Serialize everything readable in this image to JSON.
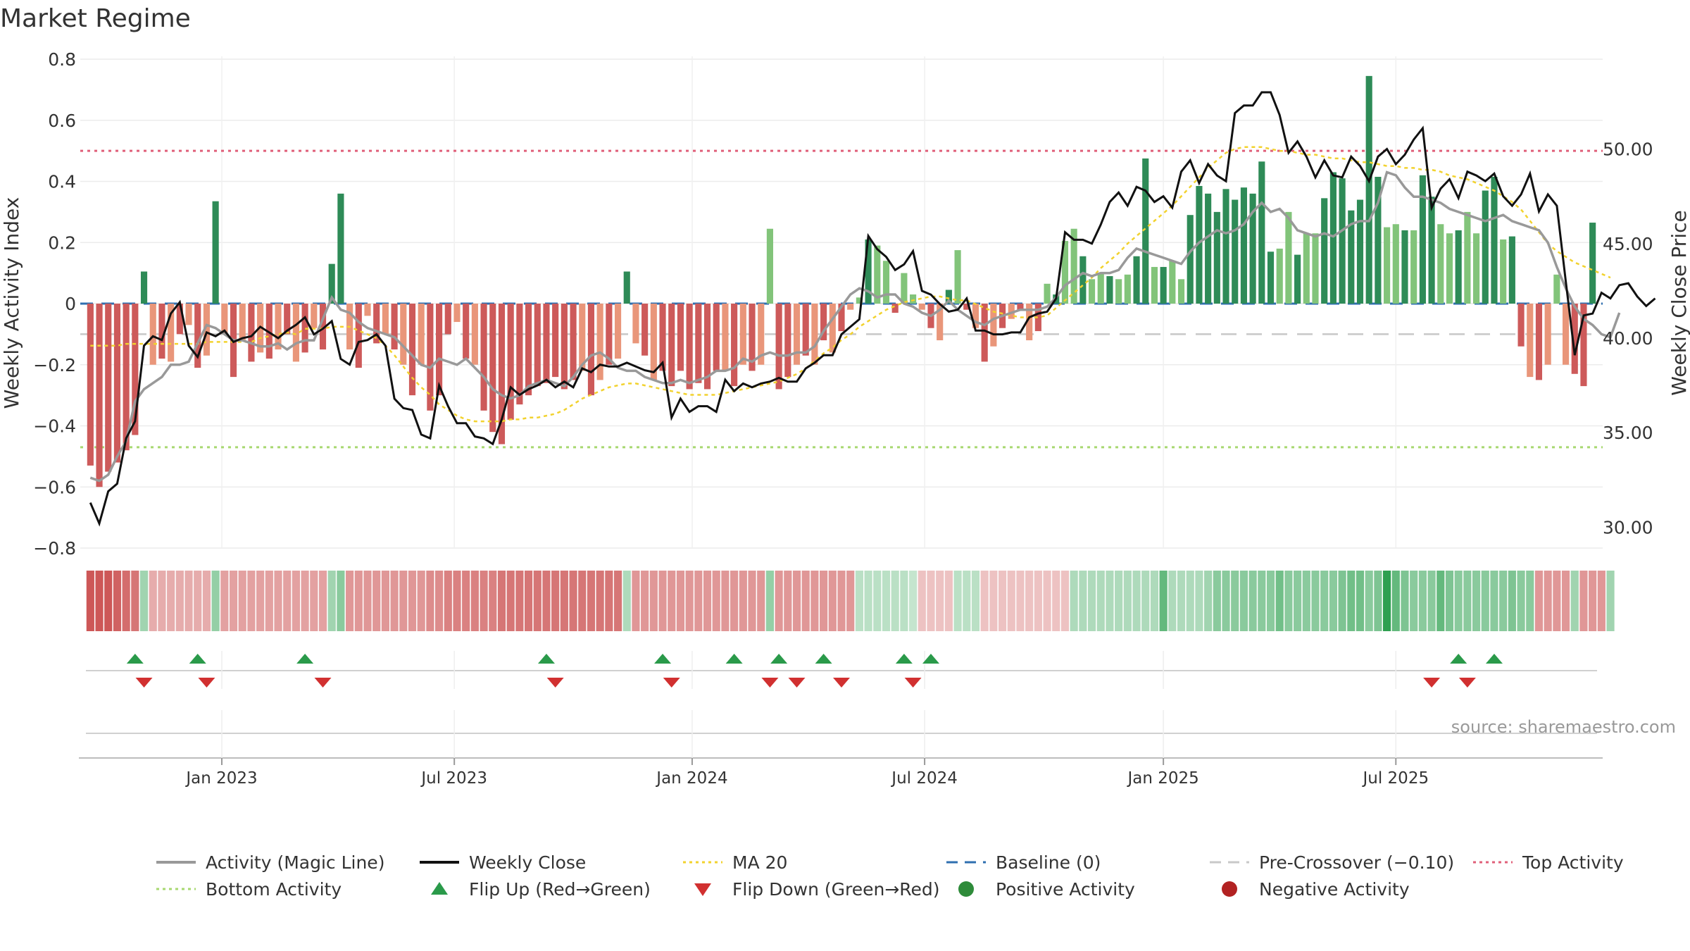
{
  "chart_data": {
    "type": "bar",
    "title": "Market Regime",
    "ylabel_left": "Weekly Activity Index",
    "ylabel_right": "Weekly Close Price",
    "source": "source: sharemaestro.com",
    "ylim_left": [
      -0.8,
      0.8
    ],
    "ylim_right": [
      28.9,
      54.75
    ],
    "left_ticks": [
      "0.8",
      "0.6",
      "0.4",
      "0.2",
      "0",
      "−0.2",
      "−0.4",
      "−0.6",
      "−0.8"
    ],
    "left_tick_values": [
      0.8,
      0.6,
      0.4,
      0.2,
      0,
      -0.2,
      -0.4,
      -0.6,
      -0.8
    ],
    "right_ticks": [
      "30.00",
      "35.00",
      "40.00",
      "45.00",
      "50.00"
    ],
    "right_tick_values": [
      30,
      35,
      40,
      45,
      50
    ],
    "x_tick_labels": [
      "Jan 2023",
      "Jul 2023",
      "Jan 2024",
      "Jul 2024",
      "Jan 2025",
      "Jul 2025"
    ],
    "x_tick_weeks": [
      14.7,
      40.7,
      67.3,
      93.3,
      120.0,
      146.0
    ],
    "reference_lines": {
      "top_activity": 0.5,
      "bottom_activity": -0.47,
      "baseline": 0,
      "pre_crossover": -0.1
    },
    "grid": true,
    "legend_position": "bottom",
    "legend": [
      {
        "label": "Activity (Magic Line)",
        "kind": "line",
        "color": "#999999"
      },
      {
        "label": "Weekly Close",
        "kind": "line",
        "color": "#111111"
      },
      {
        "label": "MA 20",
        "kind": "dotted",
        "color": "#f2d22e"
      },
      {
        "label": "Baseline (0)",
        "kind": "dashed",
        "color": "#2f6fb0"
      },
      {
        "label": "Pre-Crossover (−0.10)",
        "kind": "dashed",
        "color": "#c8c8c8"
      },
      {
        "label": "Top Activity",
        "kind": "dotted",
        "color": "#e0607a"
      },
      {
        "label": "Bottom Activity",
        "kind": "dotted",
        "color": "#a8d870"
      },
      {
        "label": "Flip Up (Red→Green)",
        "kind": "tri-up",
        "color": "#2a9a4a"
      },
      {
        "label": "Flip Down (Green→Red)",
        "kind": "tri-down",
        "color": "#d13030"
      },
      {
        "label": "Positive Activity",
        "kind": "dot",
        "color": "#2e8b3a"
      },
      {
        "label": "Negative Activity",
        "kind": "dot",
        "color": "#b22222"
      }
    ],
    "colors": {
      "strong_pos": "#2e8b57",
      "weak_pos": "#82c47a",
      "strong_neg": "#cd5a5a",
      "weak_neg": "#e9967a",
      "close": "#111111",
      "magic": "#999999",
      "ma20": "#f2d22e",
      "top": "#e0607a",
      "bottom": "#a8d870",
      "baseline": "#2f6fb0",
      "precross": "#c8c8c8"
    },
    "activity": [
      -0.53,
      -0.6,
      -0.55,
      -0.52,
      -0.48,
      -0.43,
      0.105,
      -0.2,
      -0.18,
      -0.19,
      -0.1,
      -0.07,
      -0.21,
      -0.17,
      0.335,
      -0.1,
      -0.24,
      -0.12,
      -0.19,
      -0.16,
      -0.18,
      -0.15,
      -0.1,
      -0.19,
      -0.16,
      -0.08,
      -0.15,
      0.13,
      0.36,
      -0.15,
      -0.21,
      -0.04,
      -0.13,
      -0.1,
      -0.15,
      -0.2,
      -0.3,
      -0.2,
      -0.35,
      -0.3,
      -0.1,
      -0.06,
      -0.18,
      -0.2,
      -0.35,
      -0.42,
      -0.46,
      -0.38,
      -0.33,
      -0.3,
      -0.27,
      -0.26,
      -0.24,
      -0.28,
      -0.25,
      -0.22,
      -0.3,
      -0.25,
      -0.2,
      -0.18,
      0.105,
      -0.13,
      -0.17,
      -0.25,
      -0.22,
      -0.27,
      -0.22,
      -0.28,
      -0.26,
      -0.28,
      -0.22,
      -0.22,
      -0.27,
      -0.2,
      -0.22,
      -0.2,
      0.245,
      -0.28,
      -0.24,
      -0.2,
      -0.17,
      -0.2,
      -0.12,
      -0.16,
      -0.09,
      -0.02,
      0.02,
      0.21,
      0.19,
      0.14,
      -0.03,
      0.1,
      0.03,
      -0.02,
      -0.08,
      -0.12,
      0.045,
      0.175,
      -0.02,
      -0.08,
      -0.19,
      -0.14,
      -0.08,
      -0.05,
      -0.02,
      -0.12,
      -0.09,
      0.065,
      0.03,
      0.205,
      0.245,
      0.155,
      0.08,
      0.1,
      0.09,
      0.08,
      0.095,
      0.155,
      0.475,
      0.12,
      0.12,
      0.14,
      0.08,
      0.29,
      0.385,
      0.36,
      0.3,
      0.375,
      0.34,
      0.38,
      0.36,
      0.465,
      0.17,
      0.18,
      0.3,
      0.16,
      0.23,
      0.23,
      0.345,
      0.43,
      0.41,
      0.305,
      0.34,
      0.745,
      0.415,
      0.25,
      0.26,
      0.24,
      0.24,
      0.42,
      0.35,
      0.26,
      0.23,
      0.24,
      0.3,
      0.23,
      0.37,
      0.415,
      0.21,
      0.22,
      -0.14,
      -0.24,
      -0.25,
      -0.2,
      0.095,
      -0.2,
      -0.23,
      -0.27,
      0.265
    ],
    "magic_line": [
      -0.57,
      -0.58,
      -0.56,
      -0.5,
      -0.45,
      -0.32,
      -0.28,
      -0.26,
      -0.24,
      -0.2,
      -0.2,
      -0.19,
      -0.13,
      -0.07,
      -0.08,
      -0.1,
      -0.12,
      -0.12,
      -0.13,
      -0.14,
      -0.14,
      -0.13,
      -0.15,
      -0.13,
      -0.12,
      -0.12,
      -0.05,
      0.02,
      -0.02,
      -0.03,
      -0.06,
      -0.08,
      -0.09,
      -0.1,
      -0.11,
      -0.14,
      -0.17,
      -0.2,
      -0.21,
      -0.18,
      -0.19,
      -0.2,
      -0.18,
      -0.21,
      -0.24,
      -0.28,
      -0.3,
      -0.31,
      -0.3,
      -0.27,
      -0.26,
      -0.25,
      -0.26,
      -0.27,
      -0.24,
      -0.2,
      -0.17,
      -0.16,
      -0.18,
      -0.21,
      -0.22,
      -0.22,
      -0.24,
      -0.25,
      -0.26,
      -0.26,
      -0.25,
      -0.26,
      -0.25,
      -0.24,
      -0.22,
      -0.22,
      -0.21,
      -0.18,
      -0.19,
      -0.17,
      -0.16,
      -0.17,
      -0.17,
      -0.16,
      -0.16,
      -0.14,
      -0.09,
      -0.05,
      -0.01,
      0.03,
      0.05,
      0.04,
      0.02,
      0.03,
      0.03,
      0.0,
      -0.01,
      -0.03,
      -0.04,
      -0.02,
      0.01,
      -0.02,
      -0.04,
      -0.06,
      -0.07,
      -0.05,
      -0.04,
      -0.03,
      -0.02,
      -0.02,
      -0.02,
      -0.01,
      0.02,
      0.06,
      0.08,
      0.1,
      0.09,
      0.1,
      0.1,
      0.11,
      0.15,
      0.18,
      0.17,
      0.16,
      0.15,
      0.14,
      0.13,
      0.17,
      0.2,
      0.22,
      0.24,
      0.23,
      0.24,
      0.26,
      0.3,
      0.33,
      0.3,
      0.31,
      0.28,
      0.24,
      0.23,
      0.22,
      0.23,
      0.22,
      0.24,
      0.26,
      0.27,
      0.27,
      0.33,
      0.43,
      0.42,
      0.38,
      0.35,
      0.35,
      0.34,
      0.33,
      0.31,
      0.3,
      0.29,
      0.28,
      0.27,
      0.28,
      0.29,
      0.27,
      0.26,
      0.25,
      0.24,
      0.2,
      0.12,
      0.05,
      -0.01,
      -0.05,
      -0.07,
      -0.1,
      -0.11,
      -0.03
    ],
    "weekly_close": [
      31.3,
      30.2,
      31.9,
      32.3,
      34.7,
      35.6,
      39.6,
      40.1,
      39.9,
      41.3,
      41.9,
      39.6,
      39.0,
      40.3,
      40.1,
      40.4,
      39.8,
      40.0,
      40.1,
      40.6,
      40.3,
      40.0,
      40.4,
      40.7,
      41.1,
      40.2,
      40.5,
      40.9,
      38.9,
      38.6,
      39.8,
      39.9,
      40.2,
      39.6,
      36.8,
      36.3,
      36.2,
      34.9,
      34.7,
      37.5,
      36.4,
      35.5,
      35.5,
      34.8,
      34.7,
      34.4,
      35.7,
      37.4,
      37.0,
      37.3,
      37.5,
      37.8,
      37.4,
      37.7,
      37.4,
      38.4,
      38.2,
      38.6,
      38.5,
      38.5,
      38.7,
      38.5,
      38.3,
      38.2,
      38.7,
      35.8,
      36.8,
      36.1,
      36.4,
      36.4,
      36.1,
      37.8,
      37.2,
      37.6,
      37.4,
      37.6,
      37.7,
      37.9,
      37.7,
      37.7,
      38.4,
      38.7,
      39.1,
      39.1,
      40.2,
      40.6,
      41.0,
      45.4,
      44.7,
      44.3,
      43.6,
      43.9,
      44.6,
      42.5,
      42.3,
      41.8,
      41.4,
      41.5,
      42.1,
      40.4,
      40.4,
      40.2,
      40.2,
      40.3,
      40.3,
      41.1,
      41.3,
      41.4,
      42.1,
      45.6,
      45.2,
      45.2,
      45.0,
      46.0,
      47.2,
      47.7,
      47.0,
      48.0,
      47.8,
      47.2,
      47.5,
      46.9,
      48.8,
      49.4,
      48.2,
      49.2,
      48.6,
      48.3,
      51.9,
      52.3,
      52.3,
      53.0,
      53.0,
      51.8,
      49.8,
      50.4,
      49.6,
      48.5,
      49.4,
      48.6,
      48.5,
      49.6,
      49.1,
      48.3,
      49.6,
      50.0,
      49.2,
      49.7,
      50.5,
      51.1,
      46.9,
      47.9,
      48.4,
      47.4,
      48.8,
      48.6,
      48.3,
      48.7,
      47.5,
      47.0,
      47.6,
      48.7,
      46.7,
      47.6,
      47.0,
      43.0,
      39.1,
      41.2,
      41.3,
      42.4,
      42.1,
      42.8,
      42.9,
      42.2,
      41.7,
      42.1
    ],
    "ma20": [
      39.6,
      39.6,
      39.6,
      39.6,
      39.7,
      39.7,
      39.7,
      39.7,
      39.7,
      39.7,
      39.7,
      39.7,
      39.7,
      39.8,
      39.8,
      39.8,
      39.8,
      39.8,
      39.8,
      40.0,
      40.1,
      40.2,
      40.3,
      40.2,
      40.5,
      40.5,
      40.5,
      40.6,
      40.6,
      40.6,
      40.4,
      40.2,
      40.0,
      39.6,
      39.1,
      38.5,
      37.9,
      37.4,
      37.0,
      36.5,
      36.2,
      35.9,
      35.7,
      35.6,
      35.6,
      35.6,
      35.6,
      35.7,
      35.7,
      35.8,
      35.8,
      35.9,
      36.0,
      36.2,
      36.5,
      36.8,
      37.0,
      37.2,
      37.4,
      37.5,
      37.6,
      37.6,
      37.5,
      37.4,
      37.3,
      37.2,
      37.1,
      37.0,
      37.0,
      37.0,
      37.0,
      37.1,
      37.2,
      37.3,
      37.4,
      37.5,
      37.6,
      37.7,
      37.9,
      38.1,
      38.4,
      38.8,
      39.2,
      39.5,
      39.9,
      40.2,
      40.6,
      40.9,
      41.2,
      41.5,
      41.7,
      41.9,
      42.0,
      42.1,
      42.2,
      42.2,
      42.1,
      42.0,
      42.0,
      41.8,
      41.6,
      41.4,
      41.3,
      41.2,
      41.1,
      41.1,
      41.1,
      41.2,
      41.6,
      42.0,
      42.4,
      42.8,
      43.2,
      43.7,
      44.1,
      44.5,
      45.0,
      45.4,
      45.8,
      46.2,
      46.6,
      47.0,
      47.5,
      48.0,
      48.5,
      49.0,
      49.4,
      49.8,
      50.0,
      50.1,
      50.1,
      50.1,
      50.0,
      49.9,
      49.9,
      49.8,
      49.7,
      49.7,
      49.6,
      49.5,
      49.5,
      49.4,
      49.3,
      49.3,
      49.2,
      49.1,
      49.1,
      49.0,
      49.0,
      48.9,
      48.9,
      48.8,
      48.6,
      48.5,
      48.4,
      48.2,
      48.0,
      47.8,
      47.5,
      47.2,
      46.8,
      46.2,
      45.6,
      45.0,
      44.6,
      44.3,
      44.0,
      43.8,
      43.6,
      43.4,
      43.2
    ],
    "strip_values": [
      -0.6,
      -0.6,
      -0.6,
      -0.55,
      -0.5,
      -0.45,
      0.2,
      -0.2,
      -0.2,
      -0.2,
      -0.2,
      -0.2,
      -0.2,
      -0.2,
      0.25,
      -0.25,
      -0.25,
      -0.25,
      -0.25,
      -0.25,
      -0.25,
      -0.25,
      -0.25,
      -0.25,
      -0.25,
      -0.25,
      -0.25,
      0.2,
      0.3,
      -0.3,
      -0.3,
      -0.3,
      -0.3,
      -0.3,
      -0.3,
      -0.3,
      -0.3,
      -0.3,
      -0.35,
      -0.35,
      -0.4,
      -0.4,
      -0.4,
      -0.4,
      -0.4,
      -0.4,
      -0.45,
      -0.45,
      -0.45,
      -0.45,
      -0.45,
      -0.45,
      -0.45,
      -0.45,
      -0.45,
      -0.45,
      -0.45,
      -0.45,
      -0.45,
      -0.45,
      0.15,
      -0.3,
      -0.3,
      -0.3,
      -0.3,
      -0.3,
      -0.3,
      -0.3,
      -0.3,
      -0.3,
      -0.3,
      -0.3,
      -0.3,
      -0.3,
      -0.3,
      -0.3,
      0.25,
      -0.3,
      -0.3,
      -0.3,
      -0.3,
      -0.3,
      -0.3,
      -0.3,
      -0.3,
      -0.3,
      0.1,
      0.1,
      0.1,
      0.1,
      0.1,
      0.1,
      0.05,
      -0.1,
      -0.1,
      -0.1,
      -0.1,
      0.1,
      0.1,
      0.1,
      -0.1,
      -0.1,
      -0.1,
      -0.1,
      -0.1,
      -0.1,
      -0.1,
      -0.1,
      -0.1,
      -0.1,
      0.15,
      0.15,
      0.15,
      0.15,
      0.15,
      0.15,
      0.15,
      0.15,
      0.15,
      0.15,
      0.45,
      0.15,
      0.15,
      0.15,
      0.15,
      0.2,
      0.3,
      0.3,
      0.3,
      0.3,
      0.3,
      0.3,
      0.3,
      0.4,
      0.3,
      0.3,
      0.3,
      0.3,
      0.3,
      0.3,
      0.35,
      0.4,
      0.4,
      0.3,
      0.35,
      0.75,
      0.45,
      0.35,
      0.3,
      0.3,
      0.3,
      0.45,
      0.35,
      0.3,
      0.3,
      0.3,
      0.3,
      0.3,
      0.3,
      0.35,
      0.3,
      0.3,
      -0.3,
      -0.3,
      -0.3,
      -0.3,
      0.2,
      -0.3,
      -0.3,
      -0.3,
      0.2
    ],
    "flip_up_weeks": [
      5.0,
      12.0,
      24.0,
      51.0,
      64.0,
      72.0,
      77.0,
      82.0,
      91.0,
      94.0,
      153.0,
      157.0
    ],
    "flip_down_weeks": [
      6.0,
      13.0,
      26.0,
      52.0,
      65.0,
      76.0,
      79.0,
      84.0,
      92.0,
      150.0,
      154.0
    ]
  }
}
